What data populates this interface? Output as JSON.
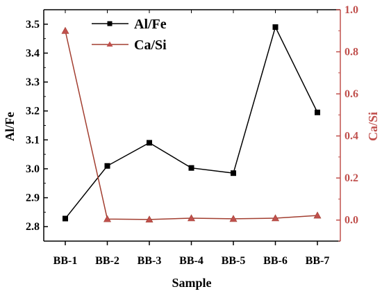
{
  "chart_data": {
    "type": "line",
    "categories": [
      "BB-1",
      "BB-2",
      "BB-3",
      "BB-4",
      "BB-5",
      "BB-6",
      "BB-7"
    ],
    "xlabel": "Sample",
    "ylabel_left": "Al/Fe",
    "ylabel_right": "Ca/Si",
    "ylim_left": [
      2.75,
      3.55
    ],
    "ylim_right": [
      -0.1,
      1.0
    ],
    "yticks_left": [
      "2.8",
      "2.9",
      "3.0",
      "3.1",
      "3.2",
      "3.3",
      "3.4",
      "3.5"
    ],
    "yticks_right": [
      "0.0",
      "0.2",
      "0.4",
      "0.6",
      "0.8",
      "1.0"
    ],
    "legend_position": "top-left",
    "grid": false,
    "series": [
      {
        "name": "Al/Fe",
        "axis": "left",
        "marker": "square",
        "color": "#000000",
        "values": [
          2.828,
          3.01,
          3.09,
          3.003,
          2.985,
          3.49,
          3.195
        ]
      },
      {
        "name": "Ca/Si",
        "axis": "right",
        "marker": "triangle",
        "color": "#a23e30",
        "values": [
          0.9,
          0.005,
          0.003,
          0.009,
          0.006,
          0.009,
          0.022
        ]
      }
    ],
    "colors": {
      "right_axis": "#c0504d"
    }
  }
}
